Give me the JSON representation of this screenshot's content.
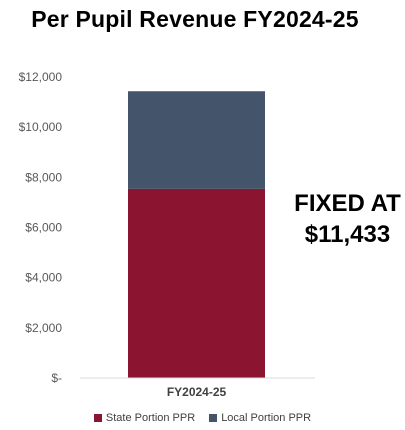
{
  "chart_data": {
    "type": "bar",
    "stacked": true,
    "title": "Per Pupil Revenue FY2024-25",
    "categories": [
      "FY2024-25"
    ],
    "series": [
      {
        "name": "State Portion PPR",
        "values": [
          7540
        ],
        "color": "#8b1530"
      },
      {
        "name": "Local Portion PPR",
        "values": [
          3893
        ],
        "color": "#44546a"
      }
    ],
    "ylim": [
      0,
      12000
    ],
    "yticks": [
      0,
      2000,
      4000,
      6000,
      8000,
      10000,
      12000
    ],
    "ytick_labels": [
      "$-",
      "$2,000",
      "$4,000",
      "$6,000",
      "$8,000",
      "$10,000",
      "$12,000"
    ],
    "xlabel": "",
    "ylabel": "",
    "grid": false,
    "legend_position": "bottom",
    "annotation": [
      "FIXED AT",
      "$11,433"
    ]
  }
}
